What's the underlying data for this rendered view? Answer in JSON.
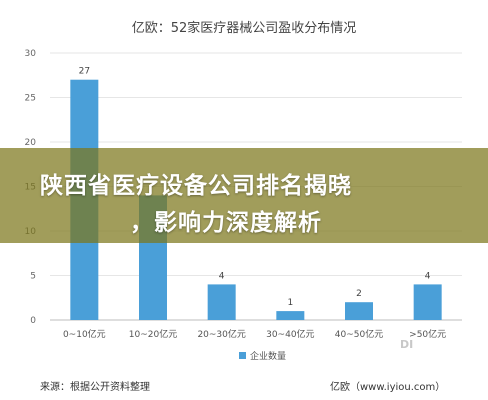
{
  "banner": {
    "line1": "陕西省医疗设备公司排名揭晓",
    "line2": "，影响力深度解析"
  },
  "chart_data": {
    "type": "bar",
    "title": "亿欧：52家医疗器械公司盈收分布情况",
    "categories": [
      "0~10亿元",
      "10~20亿元",
      "20~30亿元",
      "30~40亿元",
      "40~50亿元",
      ">50亿元"
    ],
    "series": [
      {
        "name": "企业数量",
        "values": [
          27,
          14,
          4,
          1,
          2,
          4
        ],
        "color": "#4a9fd8"
      }
    ],
    "ylim": [
      0,
      30
    ],
    "yticks": [
      0,
      5,
      10,
      15,
      20,
      25,
      30
    ],
    "grid": true,
    "legend": "bottom",
    "data_labels": [
      "27",
      "",
      "4",
      "1",
      "2",
      "4"
    ]
  },
  "footer": {
    "source": "来源：根据公开资料整理",
    "right_credit": "亿欧（www.iyiou.com）"
  },
  "watermark": "DI"
}
